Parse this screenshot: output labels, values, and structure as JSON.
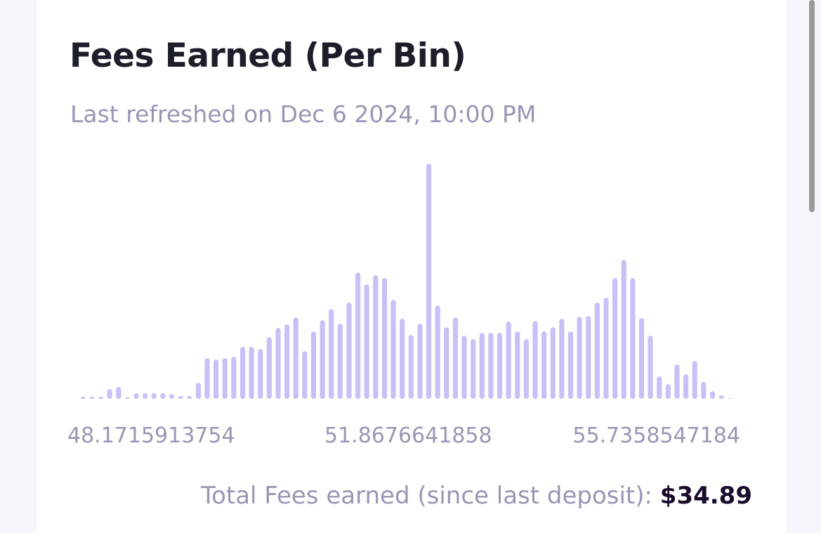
{
  "header": {
    "title": "Fees Earned (Per Bin)",
    "subtitle": "Last refreshed on Dec 6 2024, 10:00 PM"
  },
  "chart_data": {
    "type": "bar",
    "categories": [
      null,
      null,
      null,
      null,
      null,
      null,
      null,
      null,
      "48.1715913754",
      null,
      null,
      null,
      null,
      null,
      null,
      null,
      null,
      null,
      null,
      null,
      null,
      null,
      null,
      null,
      null,
      null,
      null,
      null,
      null,
      null,
      null,
      null,
      null,
      null,
      null,
      null,
      null,
      "51.8676641858",
      null,
      null,
      null,
      null,
      null,
      null,
      null,
      null,
      null,
      null,
      null,
      null,
      null,
      null,
      null,
      null,
      null,
      null,
      null,
      null,
      null,
      null,
      null,
      null,
      null,
      null,
      null,
      "55.7358547184",
      null,
      null,
      null,
      null,
      null,
      null,
      null,
      null
    ],
    "values": [
      3,
      3,
      3,
      14,
      17,
      2,
      8,
      8,
      8,
      8,
      7,
      4,
      4,
      23,
      58,
      56,
      58,
      60,
      74,
      74,
      71,
      88,
      101,
      106,
      116,
      68,
      96,
      112,
      128,
      107,
      137,
      180,
      163,
      176,
      172,
      141,
      114,
      91,
      107,
      335,
      133,
      102,
      116,
      90,
      85,
      94,
      94,
      94,
      110,
      96,
      85,
      111,
      96,
      102,
      114,
      96,
      117,
      118,
      137,
      144,
      172,
      198,
      172,
      115,
      90,
      32,
      21,
      49,
      35,
      54,
      24,
      11,
      5,
      1
    ],
    "color": "#c8c1f7",
    "ylim": [
      0,
      340
    ]
  },
  "footer": {
    "label": "Total Fees earned (since last deposit):",
    "value": "$34.89"
  }
}
